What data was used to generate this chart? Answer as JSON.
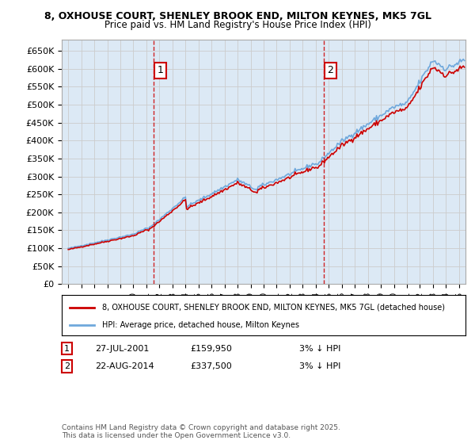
{
  "title_line1": "8, OXHOUSE COURT, SHENLEY BROOK END, MILTON KEYNES, MK5 7GL",
  "title_line2": "Price paid vs. HM Land Registry's House Price Index (HPI)",
  "ylim": [
    0,
    680000
  ],
  "yticks": [
    0,
    50000,
    100000,
    150000,
    200000,
    250000,
    300000,
    350000,
    400000,
    450000,
    500000,
    550000,
    600000,
    650000
  ],
  "ytick_labels": [
    "£0",
    "£50K",
    "£100K",
    "£150K",
    "£200K",
    "£250K",
    "£300K",
    "£350K",
    "£400K",
    "£450K",
    "£500K",
    "£550K",
    "£600K",
    "£650K"
  ],
  "sale1_date": 2001.57,
  "sale1_price": 159950,
  "sale1_label": "1",
  "sale2_date": 2014.64,
  "sale2_price": 337500,
  "sale2_label": "2",
  "hpi_color": "#6fa8dc",
  "price_color": "#cc0000",
  "marker_box_color": "#cc0000",
  "grid_color": "#cccccc",
  "bg_color": "#dce9f5",
  "legend_label1": "8, OXHOUSE COURT, SHENLEY BROOK END, MILTON KEYNES, MK5 7GL (detached house)",
  "legend_label2": "HPI: Average price, detached house, Milton Keynes",
  "annotation1_date": "27-JUL-2001",
  "annotation1_price": "£159,950",
  "annotation1_rel": "3% ↓ HPI",
  "annotation2_date": "22-AUG-2014",
  "annotation2_price": "£337,500",
  "annotation2_rel": "3% ↓ HPI",
  "footer": "Contains HM Land Registry data © Crown copyright and database right 2025.\nThis data is licensed under the Open Government Licence v3.0.",
  "xlim_start": 1994.5,
  "xlim_end": 2025.5
}
